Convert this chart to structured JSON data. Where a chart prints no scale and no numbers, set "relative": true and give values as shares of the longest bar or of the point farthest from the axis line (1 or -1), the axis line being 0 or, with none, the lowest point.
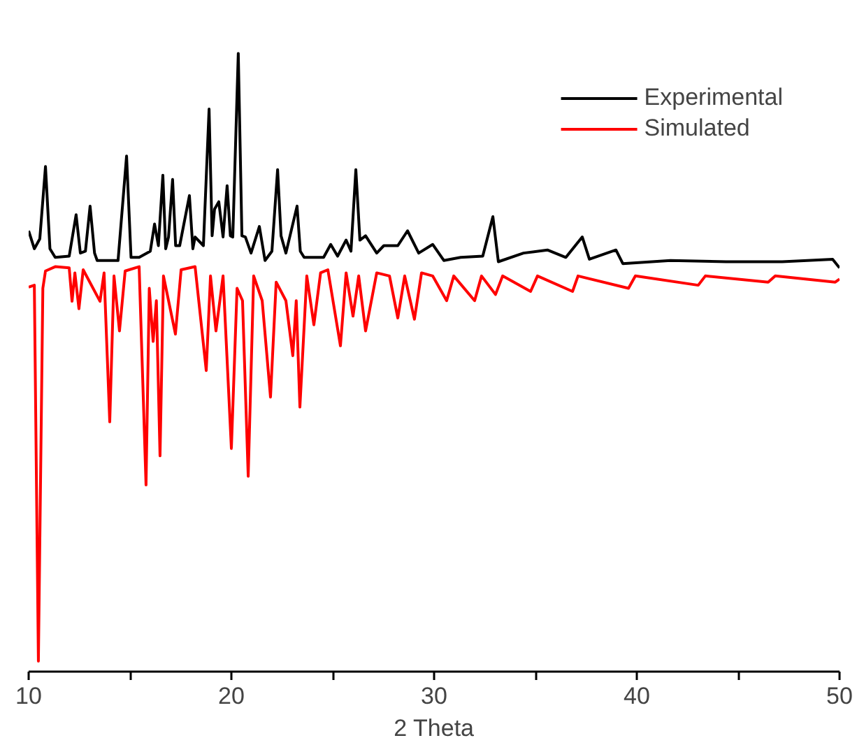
{
  "chart_data": {
    "type": "line",
    "relative": true,
    "xlabel": "2 Theta",
    "xlim": [
      10,
      50
    ],
    "xticks": [
      10,
      {
        "value": 15,
        "label": null
      },
      20,
      {
        "value": 25,
        "label": null
      },
      30,
      {
        "value": 35,
        "label": null
      },
      40,
      {
        "value": 45,
        "label": null
      },
      50
    ],
    "legend": "top right",
    "grid": false,
    "series": [
      {
        "name": "Experimental",
        "color": "#000000",
        "x": [
          10.0,
          10.28,
          10.55,
          10.83,
          11.05,
          11.31,
          12.0,
          12.34,
          12.55,
          12.8,
          13.03,
          13.25,
          13.38,
          14.41,
          14.83,
          15.05,
          15.45,
          16.0,
          16.21,
          16.4,
          16.62,
          16.76,
          16.9,
          17.1,
          17.25,
          17.45,
          17.93,
          18.1,
          18.21,
          18.62,
          18.9,
          19.05,
          19.17,
          19.38,
          19.59,
          19.79,
          19.95,
          20.07,
          20.34,
          20.52,
          20.69,
          20.97,
          21.38,
          21.66,
          22.0,
          22.28,
          22.45,
          22.69,
          23.24,
          23.4,
          23.59,
          24.55,
          24.9,
          25.24,
          25.66,
          25.9,
          26.14,
          26.34,
          26.62,
          27.17,
          27.52,
          28.21,
          28.69,
          29.24,
          29.93,
          30.48,
          31.31,
          32.4,
          32.9,
          33.17,
          34.41,
          35.59,
          36.5,
          37.31,
          37.66,
          38.97,
          39.31,
          41.66,
          44.41,
          47.17,
          49.66,
          50.0
        ],
        "values": [
          0.713,
          0.684,
          0.7,
          0.817,
          0.684,
          0.67,
          0.672,
          0.739,
          0.677,
          0.68,
          0.753,
          0.677,
          0.665,
          0.665,
          0.834,
          0.67,
          0.67,
          0.68,
          0.724,
          0.689,
          0.803,
          0.684,
          0.703,
          0.796,
          0.689,
          0.689,
          0.77,
          0.684,
          0.703,
          0.689,
          0.91,
          0.705,
          0.748,
          0.76,
          0.703,
          0.786,
          0.705,
          0.703,
          1.0,
          0.705,
          0.703,
          0.677,
          0.72,
          0.665,
          0.68,
          0.812,
          0.705,
          0.677,
          0.753,
          0.68,
          0.67,
          0.67,
          0.691,
          0.672,
          0.698,
          0.68,
          0.812,
          0.698,
          0.705,
          0.677,
          0.689,
          0.689,
          0.713,
          0.677,
          0.691,
          0.665,
          0.67,
          0.672,
          0.736,
          0.663,
          0.677,
          0.682,
          0.67,
          0.703,
          0.667,
          0.682,
          0.66,
          0.665,
          0.663,
          0.663,
          0.667,
          0.653
        ]
      },
      {
        "name": "Simulated",
        "color": "#ff0000",
        "x": [
          10.0,
          10.28,
          10.48,
          10.7,
          10.83,
          11.31,
          12.0,
          12.14,
          12.28,
          12.48,
          12.69,
          13.52,
          13.72,
          14.0,
          14.21,
          14.48,
          14.76,
          15.45,
          15.79,
          15.95,
          16.14,
          16.3,
          16.48,
          16.65,
          17.24,
          17.52,
          18.21,
          18.76,
          18.97,
          19.24,
          19.59,
          20.0,
          20.28,
          20.55,
          20.83,
          21.1,
          21.52,
          21.93,
          22.21,
          22.69,
          23.03,
          23.2,
          23.38,
          23.72,
          24.07,
          24.4,
          24.76,
          25.38,
          25.66,
          26.0,
          26.28,
          26.62,
          27.17,
          27.8,
          28.21,
          28.55,
          29.03,
          29.38,
          29.93,
          30.62,
          30.97,
          32.0,
          32.34,
          33.03,
          33.38,
          34.76,
          35.1,
          36.83,
          37.1,
          39.59,
          39.93,
          43.03,
          43.38,
          46.48,
          46.83,
          49.79,
          50.0
        ],
        "values": [
          0.622,
          0.625,
          0.017,
          0.62,
          0.648,
          0.655,
          0.653,
          0.599,
          0.645,
          0.587,
          0.65,
          0.599,
          0.645,
          0.404,
          0.64,
          0.551,
          0.648,
          0.655,
          0.302,
          0.62,
          0.534,
          0.6,
          0.349,
          0.64,
          0.546,
          0.65,
          0.655,
          0.487,
          0.64,
          0.551,
          0.64,
          0.361,
          0.62,
          0.6,
          0.316,
          0.64,
          0.6,
          0.444,
          0.63,
          0.6,
          0.511,
          0.6,
          0.428,
          0.64,
          0.561,
          0.645,
          0.65,
          0.527,
          0.645,
          0.575,
          0.64,
          0.551,
          0.645,
          0.64,
          0.572,
          0.64,
          0.57,
          0.645,
          0.64,
          0.6,
          0.64,
          0.6,
          0.64,
          0.61,
          0.64,
          0.615,
          0.64,
          0.615,
          0.64,
          0.62,
          0.64,
          0.625,
          0.64,
          0.63,
          0.64,
          0.63,
          0.635
        ]
      }
    ]
  }
}
